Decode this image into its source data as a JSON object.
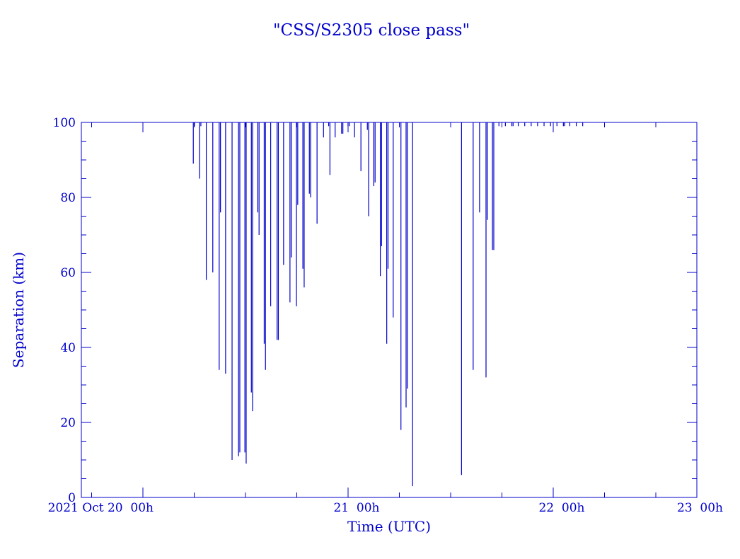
{
  "chart_data": {
    "type": "bar",
    "title": "\"CSS/S2305 close pass\"",
    "xlabel": "Time (UTC)",
    "ylabel": "Separation (km)",
    "xlim": [
      -0.3,
      2.7
    ],
    "ylim": [
      0,
      100
    ],
    "color": "#0000cc",
    "x_ticks": [
      {
        "x": 0.0,
        "label": "2021 Oct 20  00h"
      },
      {
        "x": 1.0,
        "label": "21  00h"
      },
      {
        "x": 2.0,
        "label": "22  00h"
      },
      {
        "x": 3.0,
        "label": "23  00h"
      }
    ],
    "y_ticks": [
      {
        "y": 0,
        "label": "0"
      },
      {
        "y": 20,
        "label": "20"
      },
      {
        "y": 40,
        "label": "40"
      },
      {
        "y": 60,
        "label": "60"
      },
      {
        "y": 80,
        "label": "80"
      },
      {
        "y": 100,
        "label": "100"
      }
    ],
    "x": [
      0.2456,
      0.2514,
      0.2763,
      0.2826,
      0.3089,
      0.3406,
      0.3718,
      0.378,
      0.4031,
      0.4346,
      0.466,
      0.4723,
      0.4971,
      0.5033,
      0.5285,
      0.5347,
      0.56,
      0.5662,
      0.5912,
      0.5974,
      0.6228,
      0.654,
      0.6602,
      0.6857,
      0.7168,
      0.7232,
      0.7483,
      0.7546,
      0.7797,
      0.786,
      0.8112,
      0.8174,
      0.8488,
      0.8803,
      0.9055,
      0.9117,
      0.937,
      0.9683,
      0.9747,
      0.9998,
      1.0061,
      1.0313,
      1.0627,
      1.094,
      1.1003,
      1.1255,
      1.1317,
      1.1572,
      1.1633,
      1.1885,
      1.1948,
      1.22,
      1.2577,
      1.2828,
      1.2892,
      1.3143,
      1.553,
      1.6097,
      1.641,
      1.6724,
      1.6787,
      1.7037,
      1.7102,
      1.7353,
      1.7668,
      1.7982,
      1.8043,
      1.8295,
      1.8611,
      1.8925,
      1.9238,
      1.9553,
      1.9868,
      2.0181,
      2.0495,
      2.0557,
      2.0808,
      2.1123,
      2.1436
    ],
    "values": [
      89,
      99,
      85,
      99,
      58,
      60,
      34,
      76,
      33,
      10,
      11,
      12,
      12,
      9,
      28,
      23,
      76,
      70,
      41,
      34,
      51,
      42,
      42,
      62,
      52,
      64,
      51,
      78,
      61,
      56,
      81,
      80,
      73,
      96,
      99,
      86,
      96,
      97,
      97,
      99,
      99,
      96,
      87,
      98,
      75,
      83,
      84,
      59,
      67,
      41,
      61,
      48,
      18,
      24,
      29,
      3,
      6,
      34,
      76,
      32,
      74,
      66,
      66,
      99,
      99,
      99,
      99,
      99,
      99,
      99,
      99,
      99,
      99,
      99,
      99,
      99,
      99,
      99,
      99
    ]
  }
}
